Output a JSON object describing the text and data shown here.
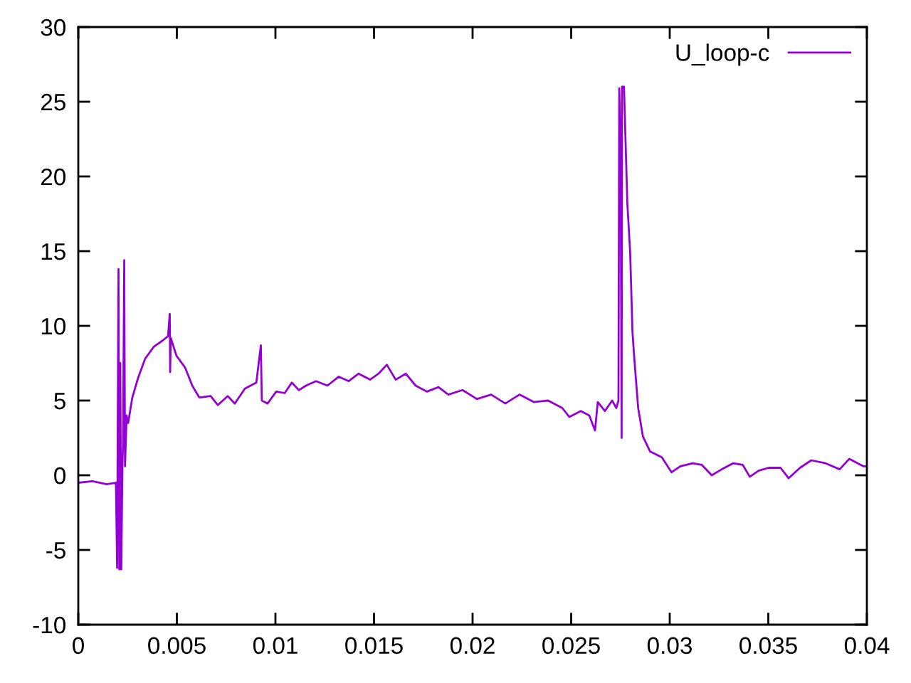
{
  "chart_data": {
    "type": "line",
    "xlim": [
      0,
      0.04
    ],
    "ylim": [
      -10,
      30
    ],
    "xticks": [
      0,
      0.005,
      0.01,
      0.015,
      0.02,
      0.025,
      0.03,
      0.035,
      0.04
    ],
    "yticks": [
      -10,
      -5,
      0,
      5,
      10,
      15,
      20,
      25,
      30
    ],
    "grid": false,
    "legend": "top right",
    "marker": "none",
    "line_style": "solid",
    "series": [
      {
        "name": "U_loop-c",
        "color": "#9400d3",
        "x": [
          0,
          0.00072,
          0.00144,
          0.00191,
          0.00197,
          0.00201,
          0.00204,
          0.00208,
          0.00213,
          0.00218,
          0.00224,
          0.00227,
          0.00233,
          0.00237,
          0.00245,
          0.00253,
          0.00274,
          0.00303,
          0.00339,
          0.00383,
          0.00426,
          0.00455,
          0.00464,
          0.00466,
          0.00469,
          0.00498,
          0.00542,
          0.00578,
          0.00614,
          0.00671,
          0.00708,
          0.00758,
          0.00794,
          0.00845,
          0.00903,
          0.00926,
          0.00931,
          0.0096,
          0.01004,
          0.01047,
          0.01083,
          0.01119,
          0.01155,
          0.01206,
          0.01264,
          0.01321,
          0.01372,
          0.01422,
          0.0148,
          0.01523,
          0.01565,
          0.0161,
          0.01661,
          0.01711,
          0.01769,
          0.01827,
          0.01877,
          0.01949,
          0.02022,
          0.02094,
          0.02166,
          0.02238,
          0.0231,
          0.02383,
          0.02455,
          0.02491,
          0.02549,
          0.02592,
          0.02621,
          0.02635,
          0.02671,
          0.02708,
          0.02729,
          0.0274,
          0.02744,
          0.02751,
          0.02756,
          0.02758,
          0.02768,
          0.02785,
          0.02799,
          0.02804,
          0.02811,
          0.02821,
          0.0284,
          0.02864,
          0.029,
          0.0296,
          0.03009,
          0.03054,
          0.03117,
          0.03162,
          0.03213,
          0.03264,
          0.03321,
          0.0337,
          0.03406,
          0.03451,
          0.03502,
          0.03562,
          0.03603,
          0.03661,
          0.03718,
          0.03791,
          0.03862,
          0.03911,
          0.03983,
          0.04
        ],
        "values": [
          -0.5,
          -0.4,
          -0.6,
          -0.5,
          -6.2,
          5.5,
          13.8,
          -6.3,
          7.5,
          -6.3,
          0.8,
          2.0,
          14.4,
          0.6,
          4.0,
          3.5,
          5.2,
          6.5,
          7.8,
          8.6,
          9.0,
          9.3,
          10.8,
          6.9,
          9.2,
          8.0,
          7.2,
          6.0,
          5.2,
          5.3,
          4.7,
          5.3,
          4.8,
          5.8,
          6.2,
          8.7,
          5.0,
          4.8,
          5.6,
          5.5,
          6.2,
          5.7,
          6.0,
          6.3,
          6.0,
          6.6,
          6.3,
          6.8,
          6.4,
          6.8,
          7.4,
          6.4,
          6.8,
          6.0,
          5.6,
          5.9,
          5.4,
          5.7,
          5.1,
          5.4,
          4.8,
          5.4,
          4.9,
          5.0,
          4.5,
          3.9,
          4.3,
          4.0,
          3.0,
          4.9,
          4.3,
          5.0,
          4.5,
          5.0,
          25.9,
          22.0,
          2.5,
          26.0,
          26.0,
          18.2,
          15.0,
          12.8,
          9.6,
          7.7,
          4.5,
          2.6,
          1.6,
          1.2,
          0.2,
          0.6,
          0.8,
          0.7,
          0.0,
          0.4,
          0.8,
          0.7,
          -0.1,
          0.3,
          0.5,
          0.5,
          -0.2,
          0.5,
          1.0,
          0.8,
          0.4,
          1.1,
          0.6,
          0.6
        ]
      }
    ]
  }
}
